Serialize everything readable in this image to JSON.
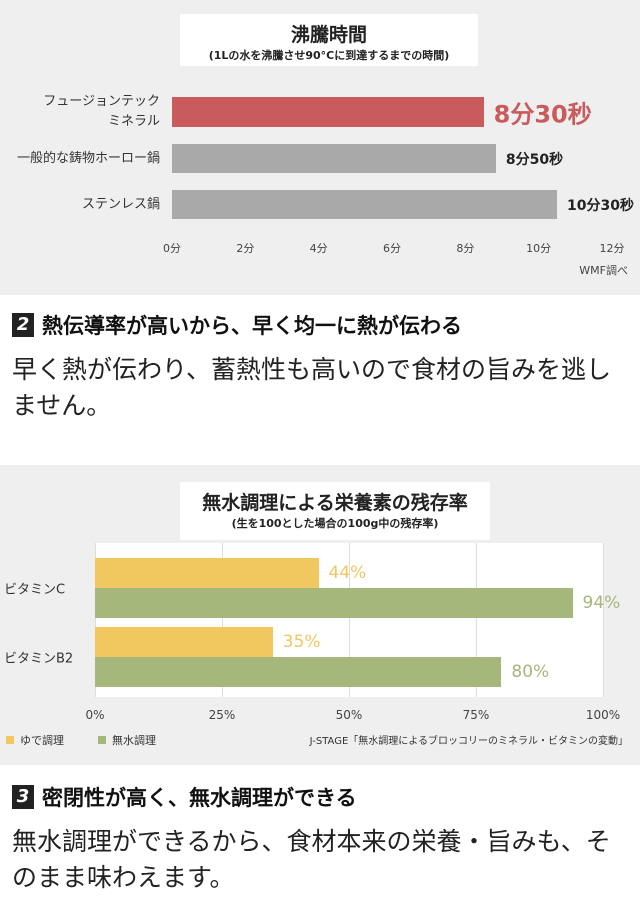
{
  "chart_data": [
    {
      "type": "hbar",
      "title": "沸騰時間",
      "subtitle": "(1Lの水を沸騰させ90°Cに到達するまでの時間)",
      "categories": [
        "フュージョンテック\nミネラル",
        "一般的な鋳物ホーロー鍋",
        "ステンレス鍋"
      ],
      "values": [
        8.5,
        8.833,
        10.5
      ],
      "value_labels": [
        "8分30秒",
        "8分50秒",
        "10分30秒"
      ],
      "colors": [
        "#c95b5c",
        "#a9a9a9",
        "#a9a9a9"
      ],
      "xlim": [
        0,
        12
      ],
      "xticks": [
        {
          "value": 0,
          "label": "0分"
        },
        {
          "value": 2,
          "label": "2分"
        },
        {
          "value": 4,
          "label": "4分"
        },
        {
          "value": 6,
          "label": "6分"
        },
        {
          "value": 8,
          "label": "8分"
        },
        {
          "value": 10,
          "label": "10分"
        },
        {
          "value": 12,
          "label": "12分"
        }
      ],
      "grid": false,
      "note": "WMF調べ"
    },
    {
      "type": "grouped-hbar",
      "title": "無水調理による栄養素の残存率",
      "subtitle": "(生を100とした場合の100g中の残存率)",
      "categories": [
        "ビタミンC",
        "ビタミンB2"
      ],
      "series": [
        {
          "name": "ゆで調理",
          "color": "#f0c85f",
          "values": [
            44,
            35
          ],
          "value_labels": [
            "44%",
            "35%"
          ]
        },
        {
          "name": "無水調理",
          "color": "#a5b77b",
          "values": [
            94,
            80
          ],
          "value_labels": [
            "94%",
            "80%"
          ]
        }
      ],
      "xlim": [
        0,
        100
      ],
      "xticks": [
        {
          "value": 0,
          "label": "0%"
        },
        {
          "value": 25,
          "label": "25%"
        },
        {
          "value": 50,
          "label": "50%"
        },
        {
          "value": 75,
          "label": "75%"
        },
        {
          "value": 100,
          "label": "100%"
        }
      ],
      "grid": true,
      "source": "J-STAGE「無水調理によるブロッコリーのミネラル・ビタミンの変動」"
    }
  ],
  "sections": [
    {
      "number": "2",
      "heading": "熱伝導率が高いから、早く均一に熱が伝わる",
      "body": "早く熱が伝わり、蓄熱性も高いので食材の旨みを逃しません。"
    },
    {
      "number": "3",
      "heading": "密閉性が高く、無水調理ができる",
      "body": "無水調理ができるから、食材本来の栄養・旨みも、そのまま味わえます。"
    }
  ]
}
